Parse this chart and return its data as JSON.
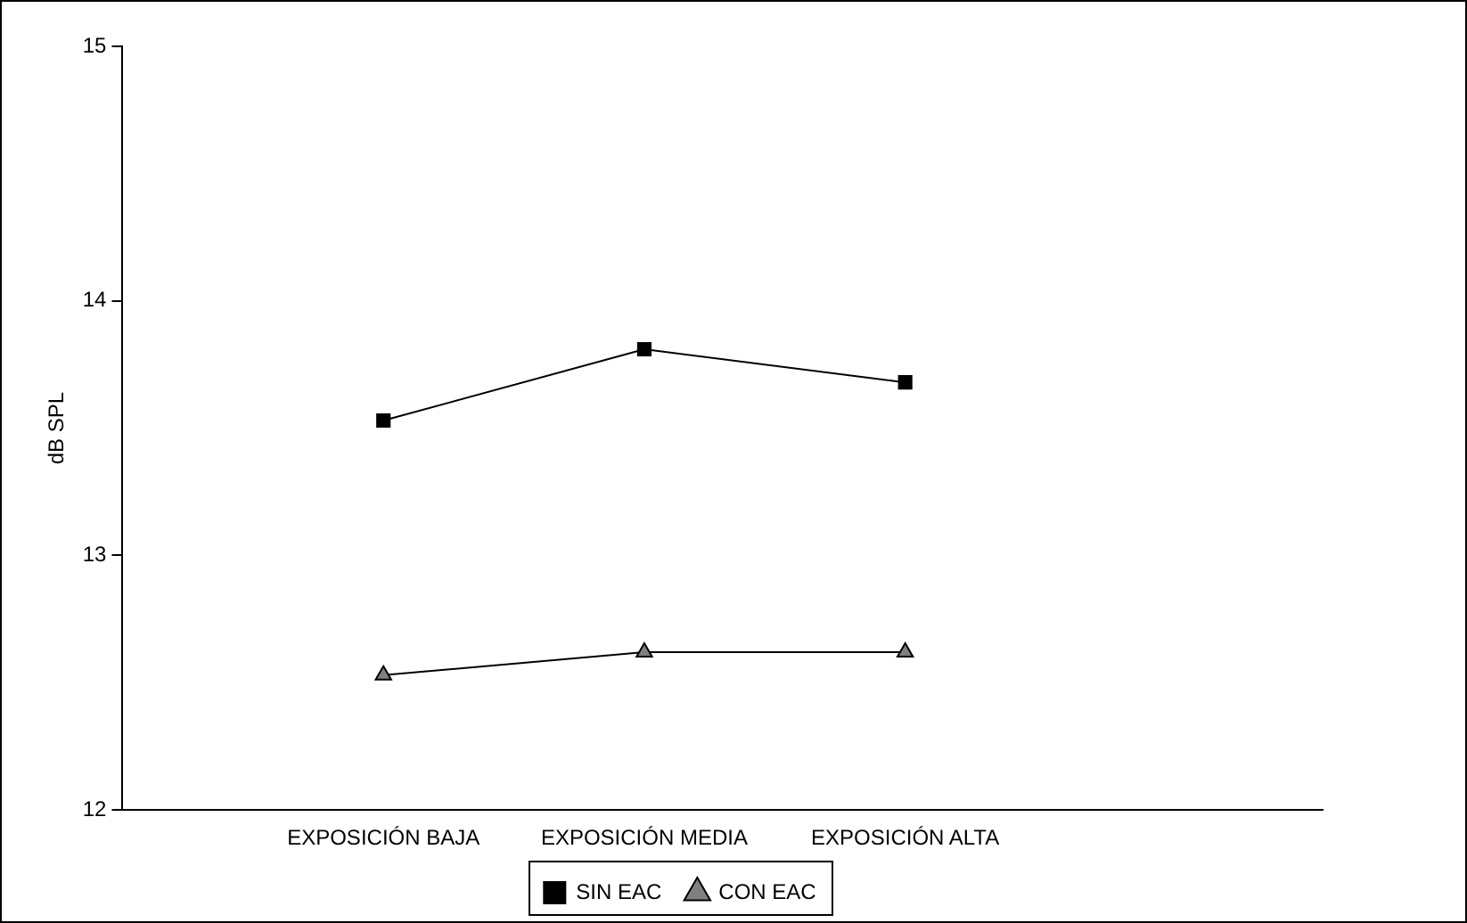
{
  "chart_data": {
    "type": "line",
    "ylabel": "dB SPL",
    "categories": [
      "EXPOSICIÓN BAJA",
      "EXPOSICIÓN MEDIA",
      "EXPOSICIÓN ALTA"
    ],
    "series": [
      {
        "name": "SIN EAC",
        "color": "#000000",
        "marker": "square",
        "values": [
          13.53,
          13.81,
          13.68
        ]
      },
      {
        "name": "CON EAC",
        "color": "#808080",
        "marker": "triangle",
        "values": [
          12.53,
          12.62,
          12.62
        ]
      }
    ],
    "ylim": [
      12,
      15
    ],
    "yticks": [
      12,
      13,
      14,
      15
    ],
    "grid": false,
    "legend": "bottom",
    "line_style": "solid"
  }
}
